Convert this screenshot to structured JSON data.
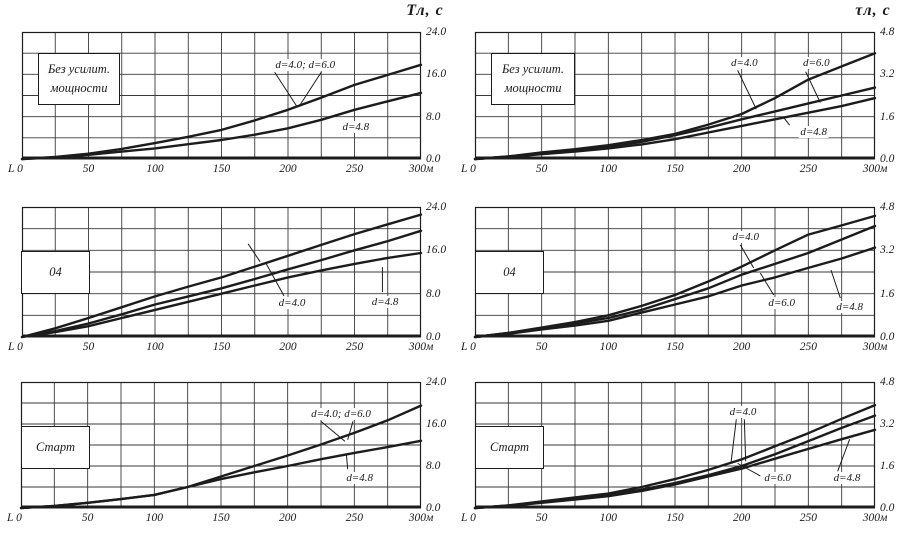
{
  "colors": {
    "ink": "#1c1c1c",
    "grid": "#3a3a3a",
    "background": "#ffffff"
  },
  "chart_data": [
    {
      "id": "top-left",
      "type": "line",
      "axis_title": "Тл, с",
      "panel_label": [
        "Без усилит.",
        "мощности"
      ],
      "xlim": [
        0,
        300
      ],
      "ylim": [
        0,
        24
      ],
      "x_grid_step": 25,
      "y_grid_step": 4,
      "x_tick_values": [
        0,
        50,
        100,
        150,
        200,
        250,
        300
      ],
      "x_tick_labels": [
        "L 0",
        "50",
        "100",
        "150",
        "200",
        "250",
        "300м"
      ],
      "y_tick_values": [
        0,
        8,
        16,
        24
      ],
      "y_tick_labels": [
        "0.0",
        "8.0",
        "16.0",
        "24.0"
      ],
      "series": [
        {
          "name": "d=4.0; d=6.0",
          "x": [
            0,
            25,
            50,
            75,
            100,
            125,
            150,
            175,
            200,
            225,
            250,
            275,
            300
          ],
          "y": [
            0,
            0.4,
            1.0,
            1.9,
            3.0,
            4.2,
            5.5,
            7.3,
            9.3,
            11.6,
            14.0,
            15.9,
            17.8
          ]
        },
        {
          "name": "d=4.8",
          "x": [
            0,
            25,
            50,
            75,
            100,
            125,
            150,
            175,
            200,
            225,
            250,
            275,
            300
          ],
          "y": [
            0,
            0.3,
            0.8,
            1.4,
            2.0,
            2.8,
            3.6,
            4.6,
            5.8,
            7.4,
            9.3,
            10.9,
            12.5
          ]
        }
      ],
      "annotations": [
        {
          "text": "d=4.0; d=6.0",
          "x": 213,
          "y": 17.8,
          "leaders": [
            [
              190,
              16.4,
              207,
              9.8
            ],
            [
              225,
              16.4,
              209,
              10.2
            ]
          ]
        },
        {
          "text": "d=4.8",
          "x": 251,
          "y": 6.0,
          "leaders": []
        }
      ]
    },
    {
      "id": "top-right",
      "type": "line",
      "axis_title": "τл, с",
      "panel_label": [
        "Без усилит.",
        "мощности"
      ],
      "xlim": [
        0,
        300
      ],
      "ylim": [
        0,
        4.8
      ],
      "x_grid_step": 25,
      "y_grid_step": 0.8,
      "x_tick_values": [
        0,
        50,
        100,
        150,
        200,
        250,
        300
      ],
      "x_tick_labels": [
        "L 0",
        "50",
        "100",
        "150",
        "200",
        "250",
        "300м"
      ],
      "y_tick_values": [
        0,
        1.6,
        3.2,
        4.8
      ],
      "y_tick_labels": [
        "0.0",
        "1.6",
        "3.2",
        "4.8"
      ],
      "series": [
        {
          "name": "d=4.0",
          "x": [
            0,
            25,
            50,
            75,
            100,
            125,
            150,
            175,
            200,
            225,
            250,
            275,
            300
          ],
          "y": [
            0,
            0.1,
            0.25,
            0.37,
            0.52,
            0.72,
            0.95,
            1.3,
            1.7,
            2.3,
            3.0,
            3.5,
            4.0
          ]
        },
        {
          "name": "d=6.0",
          "x": [
            0,
            25,
            50,
            75,
            100,
            125,
            150,
            175,
            200,
            225,
            250,
            275,
            300
          ],
          "y": [
            0,
            0.1,
            0.2,
            0.32,
            0.45,
            0.65,
            0.9,
            1.18,
            1.5,
            1.8,
            2.1,
            2.4,
            2.7
          ]
        },
        {
          "name": "d=4.8",
          "x": [
            0,
            25,
            50,
            75,
            100,
            125,
            150,
            175,
            200,
            225,
            250,
            275,
            300
          ],
          "y": [
            0,
            0.08,
            0.18,
            0.28,
            0.4,
            0.55,
            0.75,
            1.0,
            1.25,
            1.5,
            1.75,
            2.0,
            2.3
          ]
        }
      ],
      "annotations": [
        {
          "text": "d=4.0",
          "x": 202,
          "y": 3.63,
          "leaders": [
            [
              197,
              3.35,
              211,
              1.88
            ]
          ]
        },
        {
          "text": "d=6.0",
          "x": 256,
          "y": 3.63,
          "leaders": [
            [
              248,
              3.3,
              259,
              2.13
            ]
          ]
        },
        {
          "text": "d=4.8",
          "x": 254,
          "y": 1.03,
          "leaders": [
            [
              236,
              1.28,
              231,
              1.6
            ]
          ]
        }
      ]
    },
    {
      "id": "middle-left",
      "type": "line",
      "axis_title": "",
      "panel_label": [
        "04"
      ],
      "xlim": [
        0,
        300
      ],
      "ylim": [
        0,
        24
      ],
      "x_grid_step": 25,
      "y_grid_step": 4,
      "x_tick_values": [
        0,
        50,
        100,
        150,
        200,
        250,
        300
      ],
      "x_tick_labels": [
        "L 0",
        "50",
        "100",
        "150",
        "200",
        "250",
        "300м"
      ],
      "y_tick_values": [
        0,
        8,
        16,
        24
      ],
      "y_tick_labels": [
        "0.0",
        "8.0",
        "16.0",
        "24.0"
      ],
      "series": [
        {
          "name": "",
          "x": [
            0,
            25,
            50,
            75,
            100,
            125,
            150,
            175,
            200,
            225,
            250,
            275,
            300
          ],
          "y": [
            0,
            1.6,
            3.5,
            5.5,
            7.5,
            9.3,
            11.0,
            13.0,
            15.0,
            17.0,
            19.0,
            20.8,
            22.6
          ]
        },
        {
          "name": "d=4.0",
          "x": [
            0,
            25,
            50,
            75,
            100,
            125,
            150,
            175,
            200,
            225,
            250,
            275,
            300
          ],
          "y": [
            0,
            1.1,
            2.5,
            4.2,
            6.0,
            7.5,
            9.0,
            10.7,
            12.5,
            14.2,
            16.0,
            17.7,
            19.6
          ]
        },
        {
          "name": "d=4.8",
          "x": [
            0,
            25,
            50,
            75,
            100,
            125,
            150,
            175,
            200,
            225,
            250,
            275,
            300
          ],
          "y": [
            0,
            0.9,
            2.0,
            3.5,
            5.0,
            6.5,
            8.0,
            9.5,
            11.0,
            12.3,
            13.5,
            14.6,
            15.5
          ]
        }
      ],
      "annotations": [
        {
          "text": "",
          "x": 0,
          "y": 0,
          "leaders": [
            [
              170,
              17.2,
              179,
              13.9
            ]
          ]
        },
        {
          "text": "d=4.0",
          "x": 203,
          "y": 6.3,
          "leaders": [
            [
              197,
              7.6,
              183,
              13.8
            ]
          ]
        },
        {
          "text": "d=4.8",
          "x": 273,
          "y": 6.5,
          "leaders": [
            [
              271,
              8.3,
              271,
              12.9
            ]
          ]
        }
      ]
    },
    {
      "id": "middle-right",
      "type": "line",
      "axis_title": "",
      "panel_label": [
        "04"
      ],
      "xlim": [
        0,
        300
      ],
      "ylim": [
        0,
        4.8
      ],
      "x_grid_step": 25,
      "y_grid_step": 0.8,
      "x_tick_values": [
        0,
        50,
        100,
        150,
        200,
        250,
        300
      ],
      "x_tick_labels": [
        "L 0",
        "50",
        "100",
        "150",
        "200",
        "250",
        "300м"
      ],
      "y_tick_values": [
        0,
        1.6,
        3.2,
        4.8
      ],
      "y_tick_labels": [
        "0.0",
        "1.6",
        "3.2",
        "4.8"
      ],
      "series": [
        {
          "name": "d=4.0",
          "x": [
            0,
            25,
            50,
            75,
            100,
            125,
            150,
            175,
            200,
            225,
            250,
            275,
            300
          ],
          "y": [
            0,
            0.15,
            0.35,
            0.55,
            0.8,
            1.15,
            1.55,
            2.05,
            2.6,
            3.2,
            3.78,
            4.12,
            4.47
          ]
        },
        {
          "name": "d=6.0",
          "x": [
            0,
            25,
            50,
            75,
            100,
            125,
            150,
            175,
            200,
            225,
            250,
            275,
            300
          ],
          "y": [
            0,
            0.15,
            0.3,
            0.5,
            0.7,
            1.0,
            1.4,
            1.8,
            2.3,
            2.7,
            3.1,
            3.6,
            4.1
          ]
        },
        {
          "name": "d=4.8",
          "x": [
            0,
            25,
            50,
            75,
            100,
            125,
            150,
            175,
            200,
            225,
            250,
            275,
            300
          ],
          "y": [
            0,
            0.12,
            0.28,
            0.42,
            0.6,
            0.9,
            1.2,
            1.5,
            1.9,
            2.2,
            2.55,
            2.9,
            3.3
          ]
        }
      ],
      "annotations": [
        {
          "text": "d=4.0",
          "x": 203,
          "y": 3.69,
          "leaders": [
            [
              199,
              3.4,
              209,
              2.55
            ]
          ]
        },
        {
          "text": "d=6.0",
          "x": 230,
          "y": 1.26,
          "leaders": [
            [
              224,
              1.55,
              214,
              2.36
            ]
          ]
        },
        {
          "text": "d=4.8",
          "x": 281,
          "y": 1.11,
          "leaders": [
            [
              274,
              1.44,
              267,
              2.47
            ]
          ]
        }
      ]
    },
    {
      "id": "bottom-left",
      "type": "line",
      "axis_title": "",
      "panel_label": [
        "Старт"
      ],
      "xlim": [
        0,
        300
      ],
      "ylim": [
        0,
        24
      ],
      "x_grid_step": 25,
      "y_grid_step": 4,
      "x_tick_values": [
        0,
        50,
        100,
        150,
        200,
        250,
        300
      ],
      "x_tick_labels": [
        "L 0",
        "50",
        "100",
        "150",
        "200",
        "250",
        "300м"
      ],
      "y_tick_values": [
        0,
        8,
        16,
        24
      ],
      "y_tick_labels": [
        "0.0",
        "8.0",
        "16.0",
        "24.0"
      ],
      "series": [
        {
          "name": "d=4.0; d=6.0",
          "x": [
            0,
            25,
            50,
            75,
            100,
            125,
            150,
            175,
            200,
            225,
            250,
            275,
            300
          ],
          "y": [
            0,
            0.4,
            1.0,
            1.7,
            2.5,
            4.0,
            6.0,
            8.0,
            10.0,
            12.1,
            14.3,
            16.7,
            19.5
          ]
        },
        {
          "name": "d=4.8",
          "x": [
            0,
            25,
            50,
            75,
            100,
            125,
            150,
            175,
            200,
            225,
            250,
            275,
            300
          ],
          "y": [
            0,
            0.4,
            1.0,
            1.7,
            2.5,
            4.0,
            5.5,
            6.8,
            8.0,
            9.3,
            10.5,
            11.6,
            12.8
          ]
        }
      ],
      "annotations": [
        {
          "text": "d=4.0; d=6.0",
          "x": 240,
          "y": 17.9,
          "leaders": [
            [
              225,
              16.5,
              243,
              12.7
            ],
            [
              249,
              16.5,
              245,
              13.0
            ]
          ]
        },
        {
          "text": "d=4.8",
          "x": 254,
          "y": 5.7,
          "leaders": [
            [
              245,
              7.4,
              244,
              10.4
            ]
          ]
        }
      ]
    },
    {
      "id": "bottom-right",
      "type": "line",
      "axis_title": "",
      "panel_label": [
        "Старт"
      ],
      "xlim": [
        0,
        300
      ],
      "ylim": [
        0,
        4.8
      ],
      "x_grid_step": 25,
      "y_grid_step": 0.8,
      "x_tick_values": [
        0,
        50,
        100,
        150,
        200,
        250,
        300
      ],
      "x_tick_labels": [
        "L 0",
        "50",
        "100",
        "150",
        "200",
        "250",
        "300м"
      ],
      "y_tick_values": [
        0,
        1.6,
        3.2,
        4.8
      ],
      "y_tick_labels": [
        "0.0",
        "1.6",
        "3.2",
        "4.8"
      ],
      "series": [
        {
          "name": "d=4.0",
          "x": [
            0,
            25,
            50,
            75,
            100,
            125,
            150,
            175,
            200,
            225,
            250,
            275,
            300
          ],
          "y": [
            0,
            0.1,
            0.25,
            0.4,
            0.55,
            0.8,
            1.1,
            1.45,
            1.85,
            2.35,
            2.85,
            3.4,
            3.92
          ]
        },
        {
          "name": "d=6.0",
          "x": [
            0,
            25,
            50,
            75,
            100,
            125,
            150,
            175,
            200,
            225,
            250,
            275,
            300
          ],
          "y": [
            0,
            0.1,
            0.22,
            0.35,
            0.5,
            0.7,
            0.95,
            1.25,
            1.6,
            2.05,
            2.55,
            3.05,
            3.52
          ]
        },
        {
          "name": "d=4.8",
          "x": [
            0,
            25,
            50,
            75,
            100,
            125,
            150,
            175,
            200,
            225,
            250,
            275,
            300
          ],
          "y": [
            0,
            0.08,
            0.2,
            0.32,
            0.45,
            0.65,
            0.9,
            1.2,
            1.5,
            1.88,
            2.25,
            2.62,
            2.98
          ]
        }
      ],
      "annotations": [
        {
          "text": "d=4.0",
          "x": 201,
          "y": 3.66,
          "leaders": [
            [
              196,
              3.38,
              192,
              1.72
            ],
            [
              202,
              3.38,
              203,
              1.78
            ]
          ]
        },
        {
          "text": "d=6.0",
          "x": 227,
          "y": 1.14,
          "leaders": [
            [
              214,
              1.22,
              197,
              1.7
            ]
          ]
        },
        {
          "text": "d=4.8",
          "x": 279,
          "y": 1.14,
          "leaders": [
            [
              272,
              1.4,
              281,
              2.62
            ]
          ]
        }
      ]
    }
  ]
}
